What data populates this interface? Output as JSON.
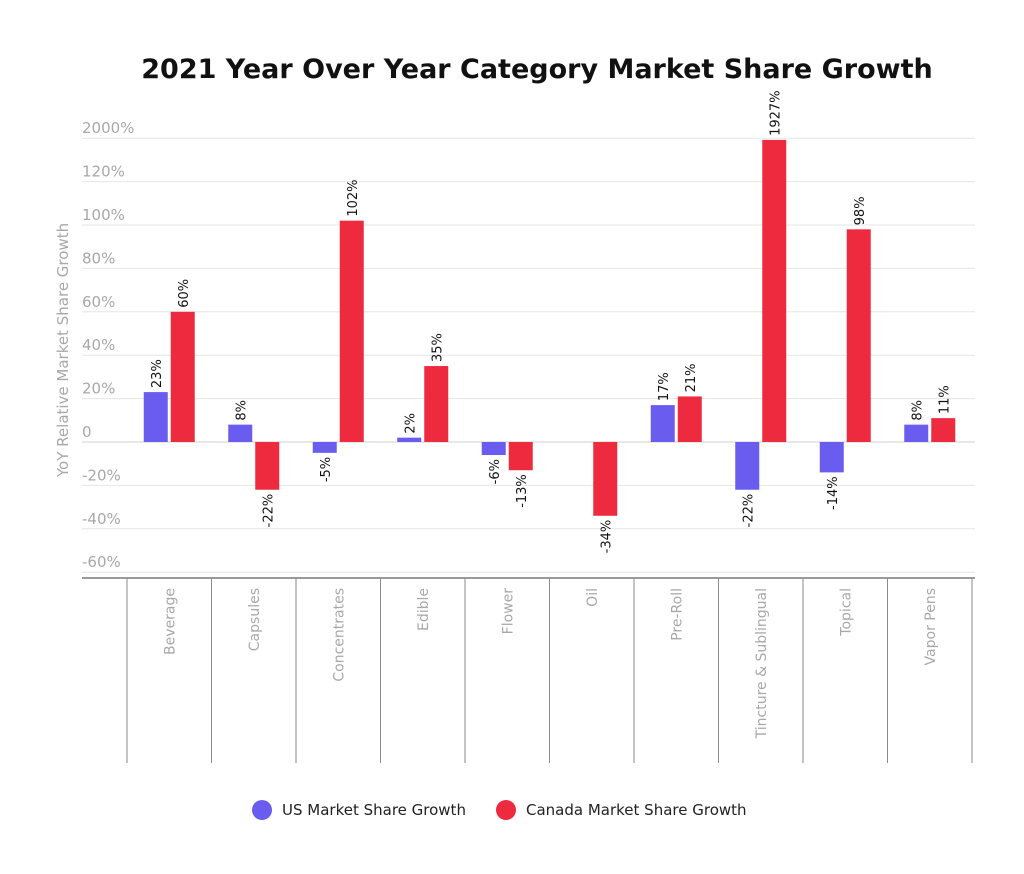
{
  "chart_data": {
    "type": "bar",
    "title": "2021 Year Over Year Category Market Share Growth",
    "ylabel": "YoY Relative Market Share Growth",
    "xlabel": "",
    "y_ticks": [
      "-60%",
      "-40%",
      "-20%",
      "0",
      "20%",
      "40%",
      "60%",
      "80%",
      "100%",
      "120%",
      "2000%"
    ],
    "y_scale_note_source": "axis is broken: the top tick reads 2000%",
    "ylim": [
      -60,
      2000
    ],
    "grid": true,
    "legend_position": "bottom",
    "categories": [
      "Beverage",
      "Capsules",
      "Concentrates",
      "Edible",
      "Flower",
      "Oil",
      "Pre-Roll",
      "Tincture & Sublingual",
      "Topical",
      "Vapor Pens"
    ],
    "series": [
      {
        "name": "US Market Share Growth",
        "color": "#6b5cf0",
        "values": [
          23,
          8,
          -5,
          2,
          -6,
          null,
          17,
          -22,
          -14,
          8
        ],
        "labels": [
          "23%",
          "8%",
          "-5%",
          "2%",
          "-6%",
          "",
          "17%",
          "-22%",
          "-14%",
          "8%"
        ]
      },
      {
        "name": "Canada Market Share Growth",
        "color": "#ee2a3f",
        "values": [
          60,
          -22,
          102,
          35,
          -13,
          -34,
          21,
          1927,
          98,
          11
        ],
        "labels": [
          "60%",
          "-22%",
          "102%",
          "35%",
          "-13%",
          "-34%",
          "21%",
          "1927%",
          "98%",
          "11%"
        ]
      }
    ]
  }
}
